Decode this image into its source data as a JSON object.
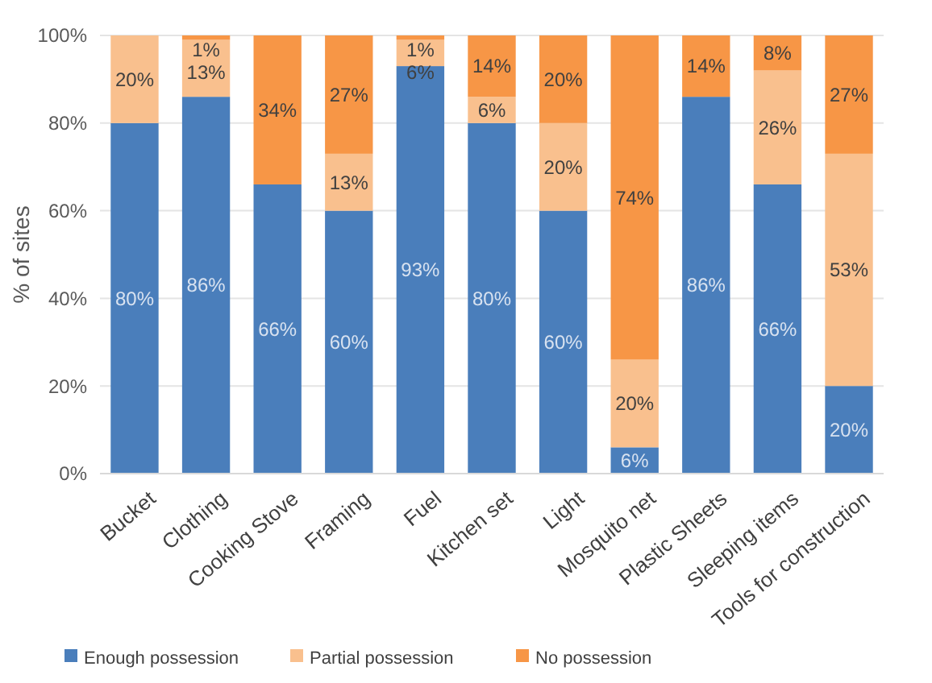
{
  "chart_data": {
    "type": "bar",
    "stacked": true,
    "ylabel": "% of sites",
    "categories": [
      "Bucket",
      "Clothing",
      "Cooking Stove",
      "Framing",
      "Fuel",
      "Kitchen set",
      "Light",
      "Mosquito net",
      "Plastic Sheets",
      "Sleeping items",
      "Tools for construction"
    ],
    "series": [
      {
        "name": "Enough possession",
        "color": "#4a7ebb",
        "values": [
          80,
          86,
          66,
          60,
          93,
          80,
          60,
          6,
          86,
          66,
          20
        ],
        "value_labels": [
          "80%",
          "86%",
          "66%",
          "60%",
          "93%",
          "80%",
          "60%",
          "6%",
          "86%",
          "66%",
          "20%"
        ]
      },
      {
        "name": "Partial possession",
        "color": "#f9c08e",
        "values": [
          20,
          13,
          0,
          13,
          6,
          6,
          20,
          20,
          0,
          26,
          53
        ],
        "value_labels": [
          "20%",
          "13%",
          null,
          "13%",
          "6%",
          "6%",
          "20%",
          "20%",
          null,
          "26%",
          "53%"
        ]
      },
      {
        "name": "No possession",
        "color": "#f79646",
        "values": [
          0,
          1,
          34,
          27,
          1,
          14,
          20,
          74,
          14,
          8,
          27
        ],
        "value_labels": [
          null,
          "1%",
          "34%",
          "27%",
          "1%",
          "14%",
          "20%",
          "74%",
          "14%",
          "8%",
          "27%"
        ]
      }
    ],
    "ylim": [
      0,
      100
    ],
    "yticks": [
      {
        "value": 0,
        "label": "0%"
      },
      {
        "value": 20,
        "label": "20%"
      },
      {
        "value": 40,
        "label": "40%"
      },
      {
        "value": 60,
        "label": "60%"
      },
      {
        "value": 80,
        "label": "80%"
      },
      {
        "value": 100,
        "label": "100%"
      }
    ],
    "grid": "y",
    "legend": "bottom"
  }
}
